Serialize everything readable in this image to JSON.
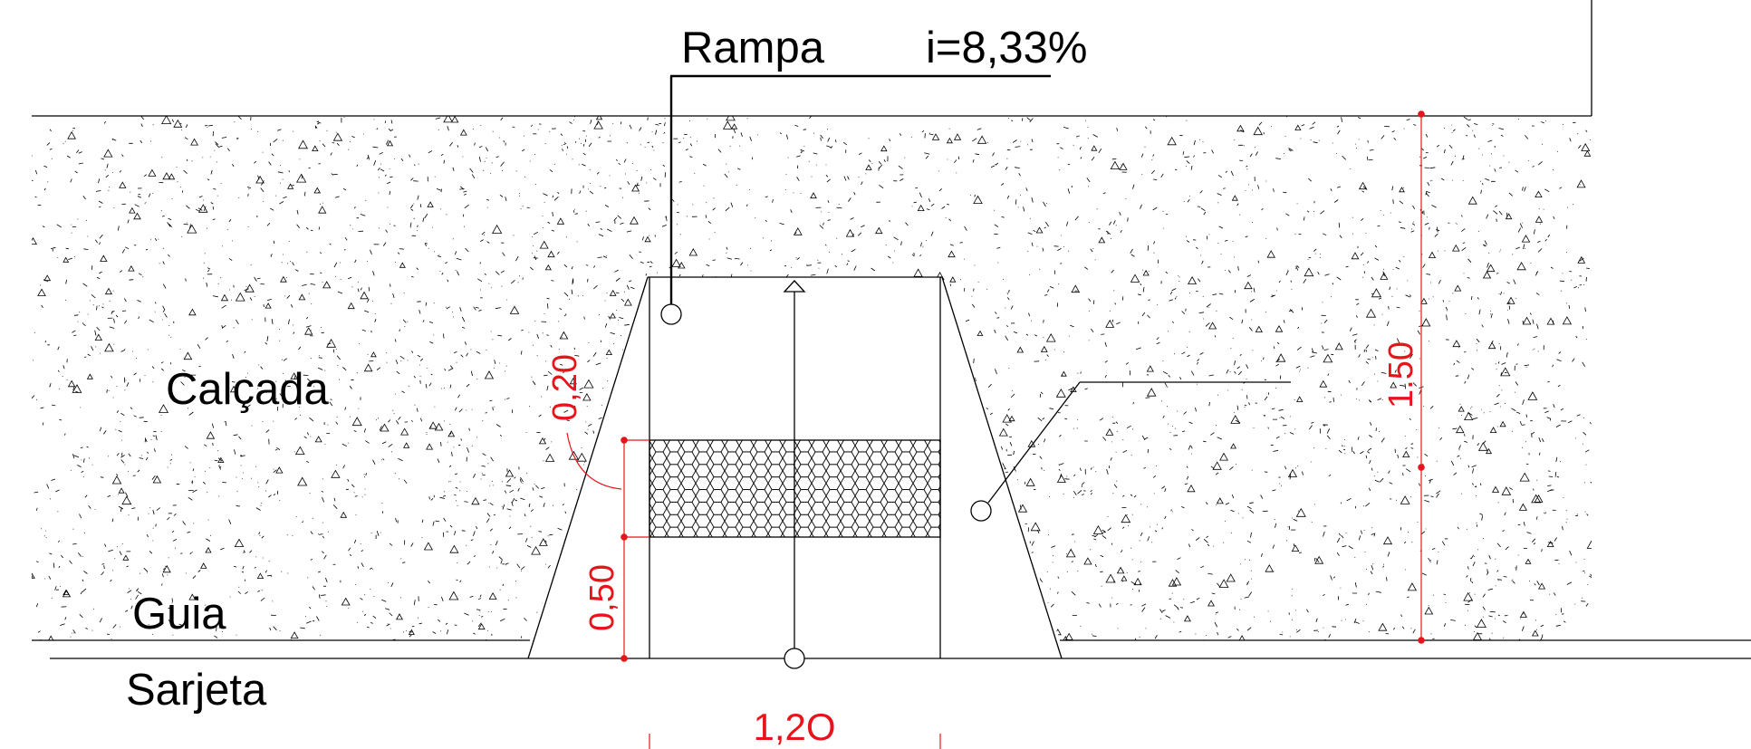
{
  "labels": {
    "ramp_title": "Rampa",
    "slope": "i=8,33%",
    "sidewalk": "Calçada",
    "curb": "Guia",
    "gutter": "Sarjeta"
  },
  "dimensions": {
    "side_offset": "0,20",
    "tactile_depth": "0,50",
    "sidewalk_width": "1.50",
    "ramp_width": "1,2O"
  },
  "colors": {
    "line": "#000000",
    "dimension": "#e8141b",
    "background": "#ffffff"
  },
  "hatch": {
    "sidewalk": "concrete-stipple",
    "tactile_floor": "hexagon-pattern"
  }
}
